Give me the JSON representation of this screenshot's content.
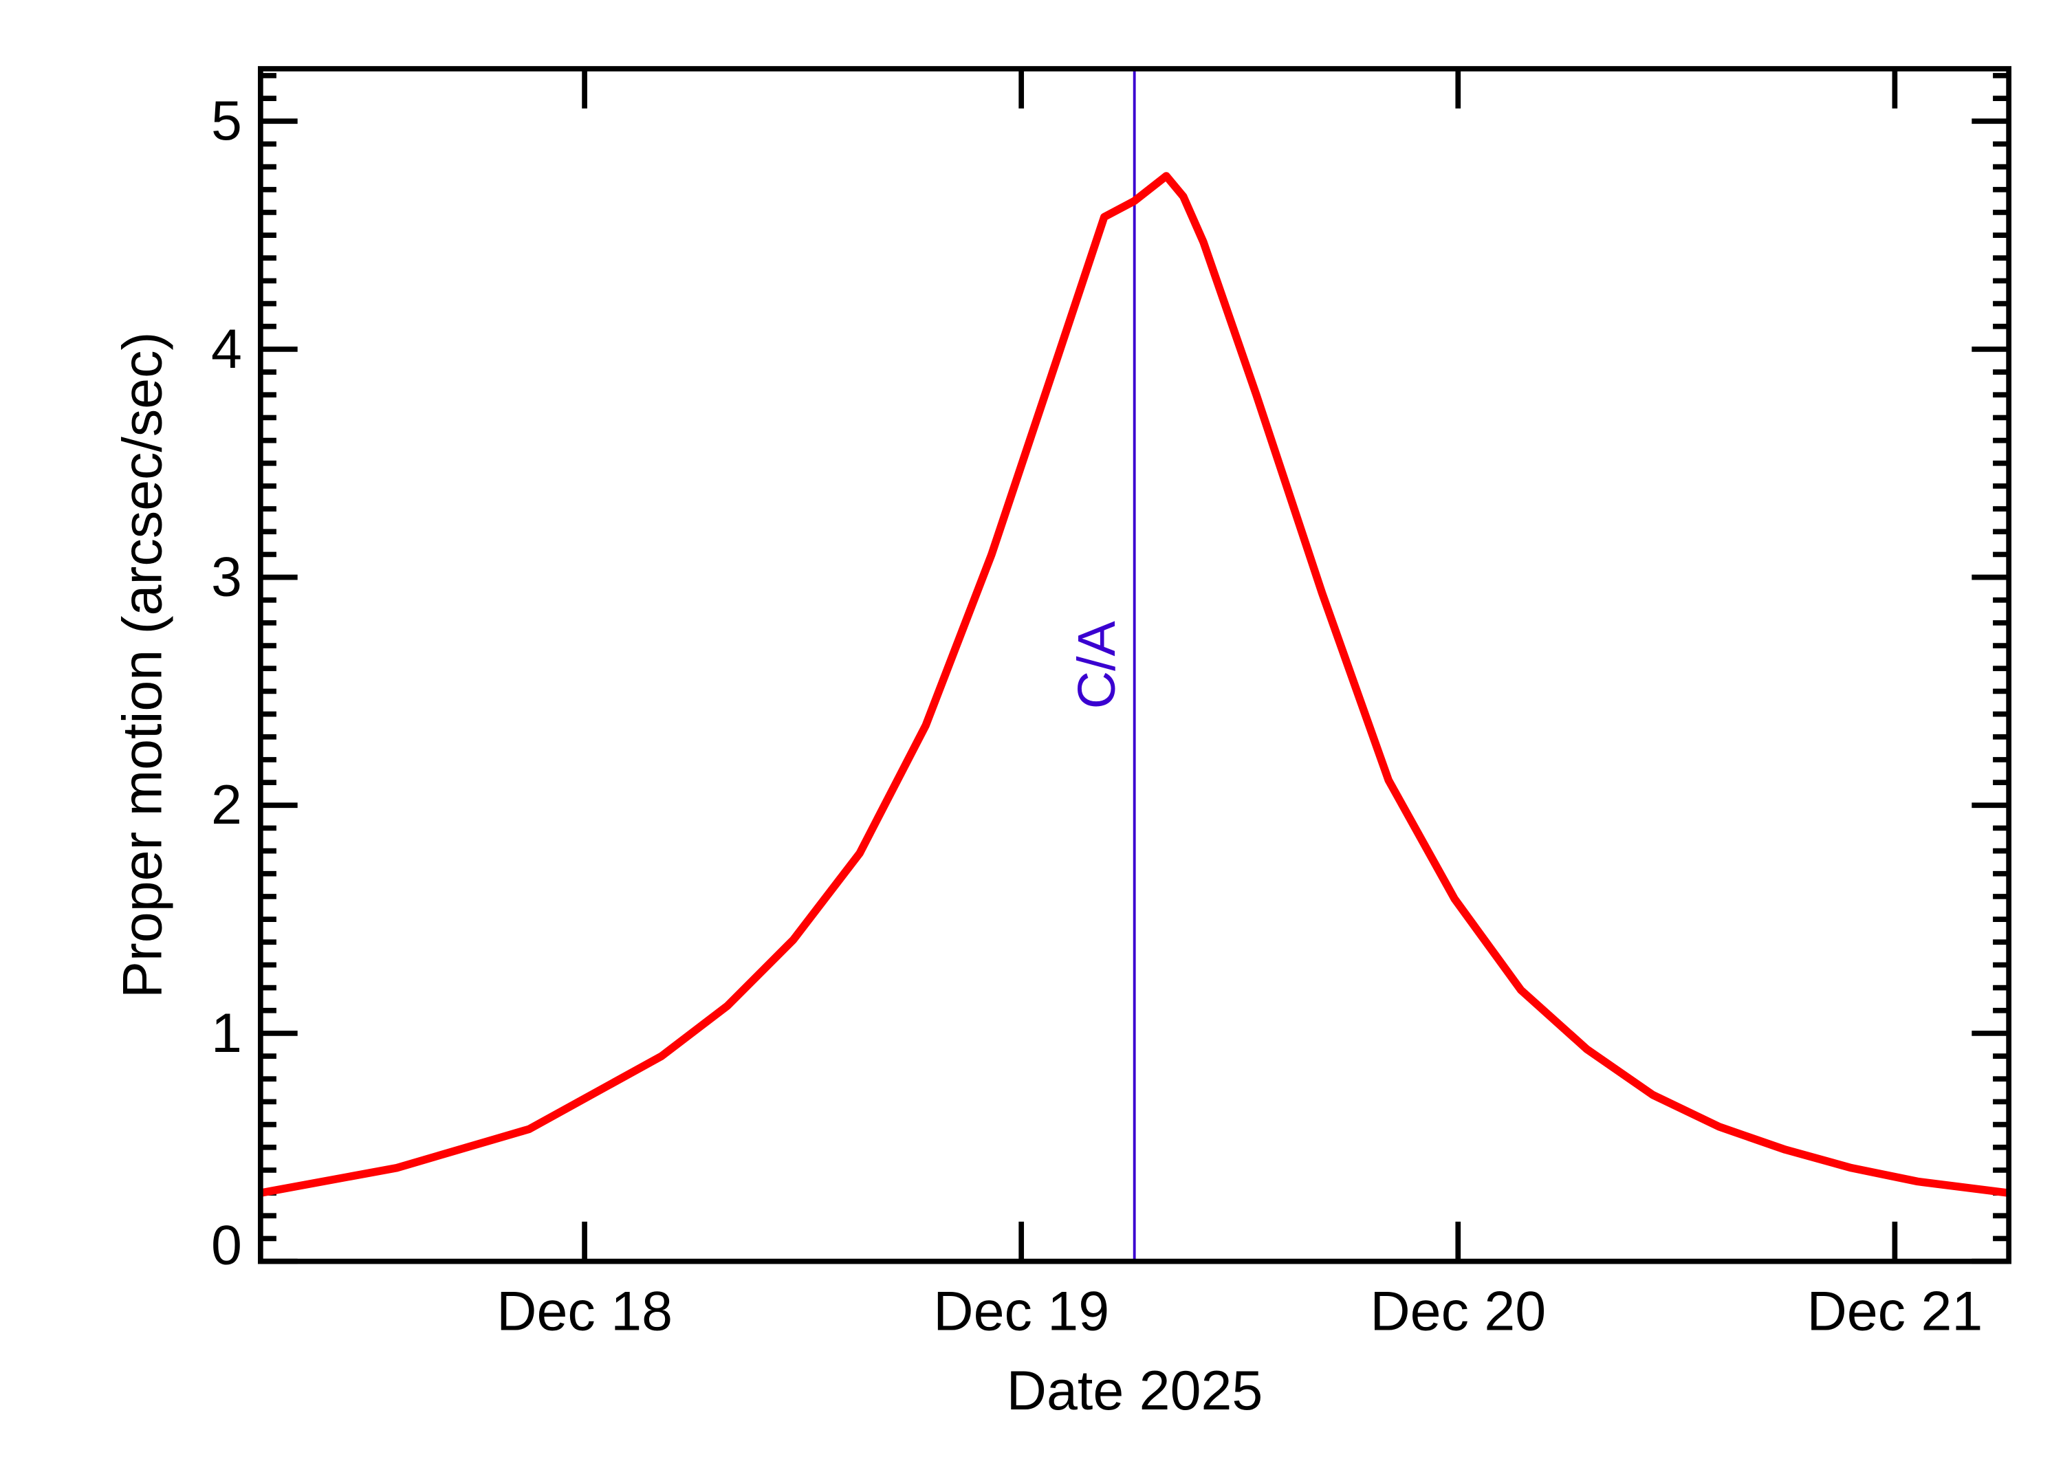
{
  "chart_data": {
    "type": "line",
    "title": "",
    "xlabel": "Date 2025",
    "ylabel": "Proper motion (arcsec/sec)",
    "x_unit": "day of December 2025",
    "xlim": [
      17.258,
      21.261
    ],
    "ylim": [
      0,
      5.23
    ],
    "x_ticks": [
      {
        "value": 18,
        "label": "Dec 18"
      },
      {
        "value": 19,
        "label": "Dec 19"
      },
      {
        "value": 20,
        "label": "Dec 20"
      },
      {
        "value": 21,
        "label": "Dec 21"
      }
    ],
    "y_ticks": [
      {
        "value": 0,
        "label": "0"
      },
      {
        "value": 1,
        "label": "1"
      },
      {
        "value": 2,
        "label": "2"
      },
      {
        "value": 3,
        "label": "3"
      },
      {
        "value": 4,
        "label": "4"
      },
      {
        "value": 5,
        "label": "5"
      }
    ],
    "y_minor_step": 0.1,
    "grid": false,
    "series": [
      {
        "color": "#ff0000",
        "x": [
          17.258,
          17.57,
          17.873,
          18.176,
          18.327,
          18.478,
          18.63,
          18.781,
          18.932,
          19.084,
          19.19,
          19.259,
          19.332,
          19.371,
          19.417,
          19.538,
          19.689,
          19.841,
          19.992,
          20.144,
          20.295,
          20.446,
          20.598,
          20.749,
          20.9,
          21.052,
          21.261
        ],
        "y": [
          0.3,
          0.41,
          0.58,
          0.9,
          1.12,
          1.41,
          1.79,
          2.35,
          3.1,
          3.97,
          4.58,
          4.65,
          4.76,
          4.67,
          4.47,
          3.8,
          2.93,
          2.11,
          1.59,
          1.19,
          0.93,
          0.73,
          0.59,
          0.49,
          0.41,
          0.35,
          0.3
        ]
      }
    ],
    "annotations": [
      {
        "type": "vline",
        "x": 19.259,
        "label": "C/A",
        "color": "#3a00d0"
      }
    ]
  }
}
